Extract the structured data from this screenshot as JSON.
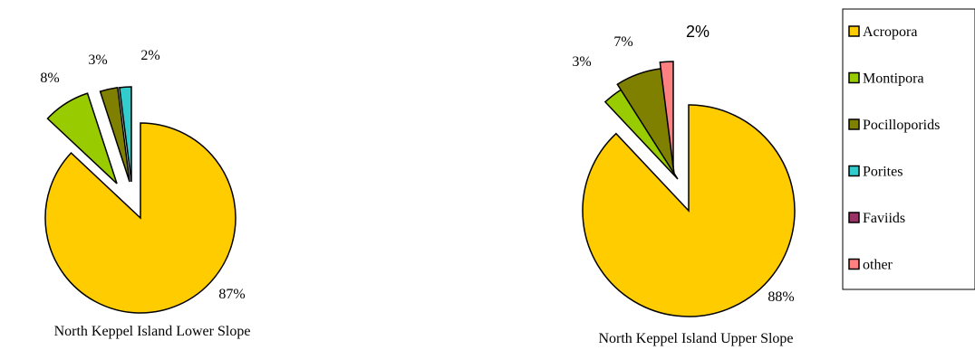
{
  "chart_data": [
    {
      "type": "pie",
      "title": "North Keppel Island Lower Slope",
      "series": [
        {
          "label": "Acropora",
          "value": 87,
          "display": "87%"
        },
        {
          "label": "Montipora",
          "value": 8,
          "display": "8%"
        },
        {
          "label": "Pocilloporids",
          "value": 3,
          "display": "3%"
        },
        {
          "label": "Porites",
          "value": 2,
          "display": "2%"
        }
      ]
    },
    {
      "type": "pie",
      "title": "North Keppel Island Upper Slope",
      "series": [
        {
          "label": "Acropora",
          "value": 88,
          "display": "88%"
        },
        {
          "label": "Montipora",
          "value": 3,
          "display": "3%"
        },
        {
          "label": "Pocilloporids",
          "value": 7,
          "display": "7%"
        },
        {
          "label": "other",
          "value": 2,
          "display": "2%"
        }
      ]
    }
  ],
  "legend": {
    "placement": "right",
    "items": [
      {
        "label": "Acropora",
        "color": "#FFCC00"
      },
      {
        "label": "Montipora",
        "color": "#99CC00"
      },
      {
        "label": "Pocilloporids",
        "color": "#808000"
      },
      {
        "label": "Porites",
        "color": "#33CCCC"
      },
      {
        "label": "Faviids",
        "color": "#993366"
      },
      {
        "label": "other",
        "color": "#FF8080"
      }
    ]
  }
}
